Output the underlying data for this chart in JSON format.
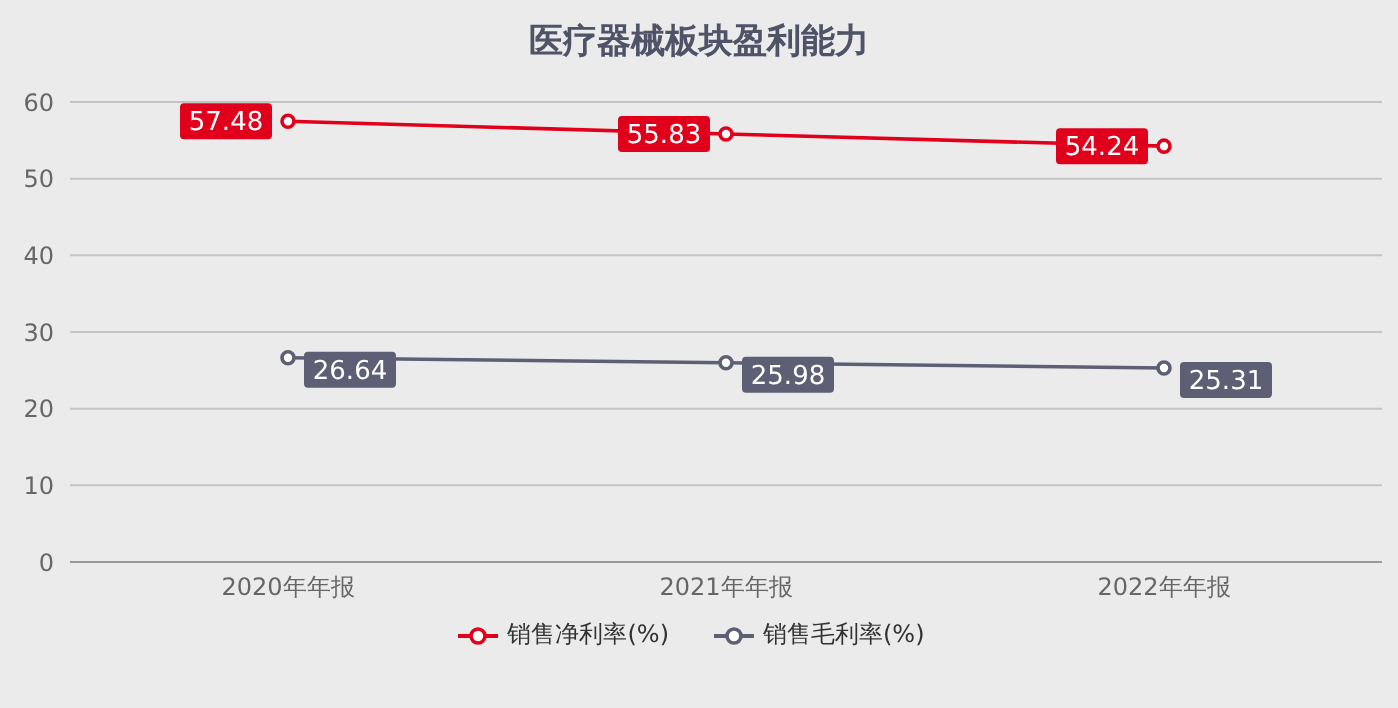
{
  "chart_data": {
    "type": "line",
    "title": "医疗器械板块盈利能力",
    "categories": [
      "2020年年报",
      "2021年年报",
      "2022年年报"
    ],
    "series": [
      {
        "name": "销售净利率(%)",
        "color": "#e0001b",
        "values": [
          57.48,
          55.83,
          54.24
        ]
      },
      {
        "name": "销售毛利率(%)",
        "color": "#5d6075",
        "values": [
          26.64,
          25.98,
          25.31
        ]
      }
    ],
    "ylim": [
      0,
      60
    ],
    "yticks": [
      0,
      10,
      20,
      30,
      40,
      50,
      60
    ],
    "grid": "y",
    "legend": "bottom",
    "marker": "circle",
    "line_style": "solid",
    "data_labels": true
  }
}
